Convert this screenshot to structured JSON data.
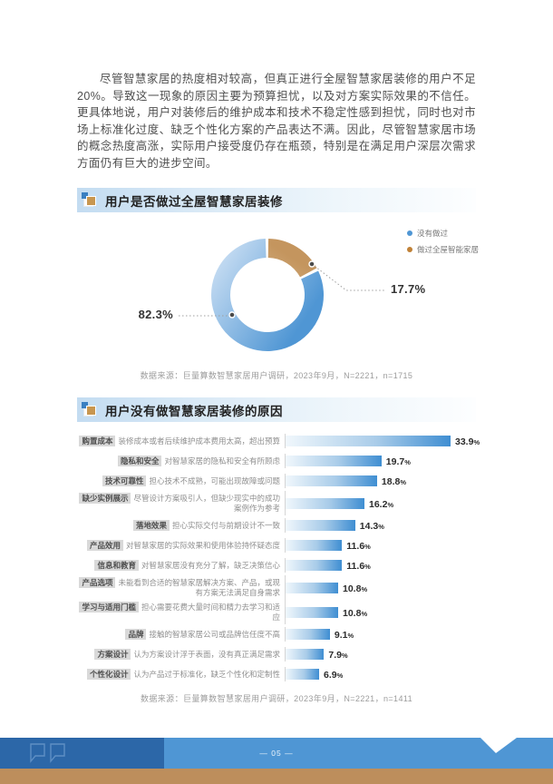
{
  "intro": {
    "text": "尽管智慧家居的热度相对较高，但真正进行全屋智慧家居装修的用户不足20%。导致这一现象的原因主要为预算担忧，以及对方案实际效果的不信任。更具体地说，用户对装修后的维护成本和技术不稳定性感到担忧，同时也对市场上标准化过度、缺乏个性化方案的产品表达不满。因此，尽管智慧家居市场的概念热度高涨，实际用户接受度仍存在瓶颈，特别是在满足用户深层次需求方面仍有巨大的进步空间。"
  },
  "section1": {
    "title": "用户是否做过全屋智慧家居装修",
    "source": "数据来源：巨量算数智慧家居用户调研，2023年9月，N=2221，n=1715"
  },
  "section2": {
    "title": "用户没有做智慧家居装修的原因",
    "source": "数据来源：巨量算数智慧家居用户调研，2023年9月，N=2221，n=1411"
  },
  "footer": {
    "page_number": "— 05 —"
  },
  "chart_data": [
    {
      "type": "pie",
      "donut": true,
      "title": "用户是否做过全屋智慧家居装修",
      "labels": [
        "没有做过",
        "做过全屋智能家居"
      ],
      "values": [
        82.3,
        17.7
      ],
      "value_suffix": "%",
      "colors": [
        "#4f96d4",
        "#c08137"
      ],
      "legend_position": "top-right"
    },
    {
      "type": "bar",
      "orientation": "horizontal",
      "title": "用户没有做智慧家居装修的原因",
      "categories": [
        "购置成本",
        "隐私和安全",
        "技术可靠性",
        "缺少实例展示",
        "落地效果",
        "产品效用",
        "信息和教育",
        "产品选项",
        "学习与适用门槛",
        "品牌",
        "方案设计",
        "个性化设计"
      ],
      "descriptions": [
        "装修成本或者后续维护成本费用太高，超出预算",
        "对智慧家居的隐私和安全有所顾虑",
        "担心技术不成熟，可能出现故障或问题",
        "尽管设计方案吸引人，但缺少现实中的成功案例作为参考",
        "担心实际交付与前期设计不一致",
        "对智慧家居的实际效果和使用体验持怀疑态度",
        "对智慧家居没有充分了解，缺乏决策信心",
        "未能看到合适的智慧家居解决方案、产品，或现有方案无法满足自身需求",
        "担心需要花费大量时间和精力去学习和适应",
        "接触的智慧家居公司或品牌信任度不高",
        "认为方案设计浮于表面，没有真正满足需求",
        "认为产品过于标准化，缺乏个性化和定制性"
      ],
      "values": [
        33.9,
        19.7,
        18.8,
        16.2,
        14.3,
        11.6,
        11.6,
        10.8,
        10.8,
        9.1,
        7.9,
        6.9
      ],
      "value_suffix": "%",
      "xlim": [
        0,
        34
      ],
      "grid": false,
      "bar_gradient": [
        "#f0f7fc",
        "#3f8ed2"
      ]
    }
  ]
}
